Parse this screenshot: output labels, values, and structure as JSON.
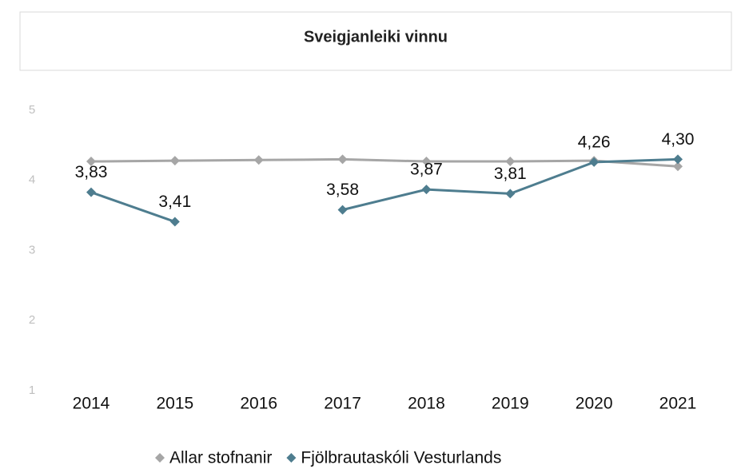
{
  "chart_data": {
    "type": "line",
    "title": "Sveigjanleiki vinnu",
    "categories": [
      "2014",
      "2015",
      "2016",
      "2017",
      "2018",
      "2019",
      "2020",
      "2021"
    ],
    "series": [
      {
        "name": "Allar stofnanir",
        "color": "#a6a6a6",
        "values": [
          4.27,
          4.28,
          4.29,
          4.3,
          4.27,
          4.27,
          4.28,
          4.2
        ]
      },
      {
        "name": "Fjölbrautaskóli Vesturlands",
        "color": "#4e7d8f",
        "values": [
          3.83,
          3.41,
          null,
          3.58,
          3.87,
          3.81,
          4.26,
          4.3
        ],
        "value_labels": [
          "3,83",
          "3,41",
          null,
          "3,58",
          "3,87",
          "3,81",
          "4,26",
          "4,30"
        ]
      }
    ],
    "ylim": [
      1,
      5
    ],
    "yticks": [
      1,
      2,
      3,
      4,
      5
    ],
    "grid": false,
    "legend": "bottom"
  }
}
